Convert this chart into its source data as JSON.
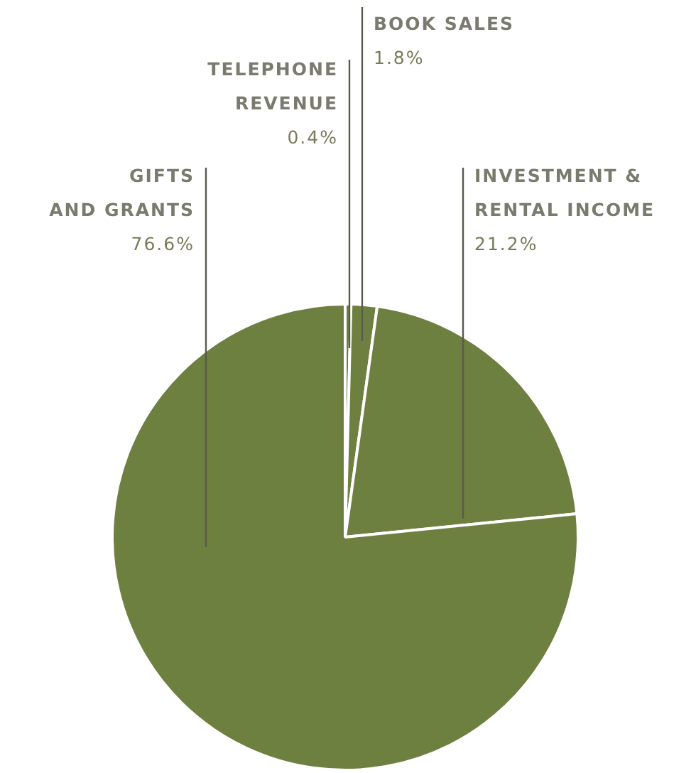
{
  "chart_data": {
    "type": "pie",
    "categories": [
      "TELEPHONE\nREVENUE",
      "BOOK SALES",
      "INVESTMENT &\nRENTAL INCOME",
      "GIFTS\nAND GRANTS"
    ],
    "values": [
      0.4,
      1.8,
      21.2,
      76.6
    ],
    "value_labels": [
      "0.4%",
      "1.8%",
      "21.2%",
      "76.6%"
    ],
    "colors": [
      "#6e8040",
      "#6e8040",
      "#6e8040",
      "#6e8040"
    ]
  }
}
